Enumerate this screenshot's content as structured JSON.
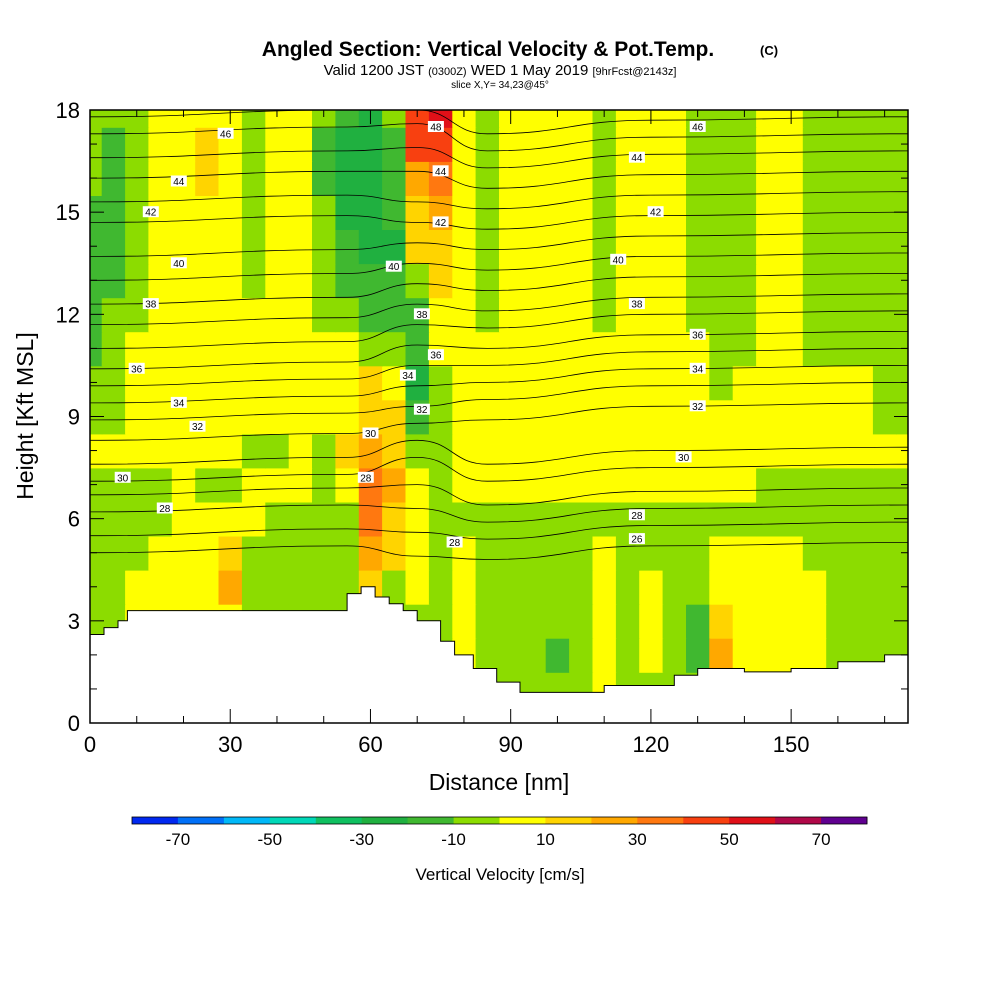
{
  "chart_data": {
    "type": "heatmap",
    "title": "Angled Section: Vertical Velocity & Pot.Temp.",
    "title_unit": "(C)",
    "subtitle": {
      "valid": "Valid 1200 JST",
      "zulu": "(0300Z)",
      "date": "WED 1 May 2019",
      "forecast": "[9hrFcst@2143z]"
    },
    "slice_label": "slice X,Y= 34,23@45°",
    "xlabel": "Distance [nm]",
    "ylabel": "Height [Kft MSL]",
    "xlim": [
      0,
      175
    ],
    "ylim": [
      0,
      18
    ],
    "x_ticks": [
      0,
      30,
      60,
      90,
      120,
      150
    ],
    "x_tick_labels": [
      "0",
      "30",
      "60",
      "90",
      "120",
      "150"
    ],
    "y_ticks": [
      0,
      3,
      6,
      9,
      12,
      15,
      18
    ],
    "y_tick_labels": [
      "0",
      "3",
      "6",
      "9",
      "12",
      "15",
      "18"
    ],
    "grid": false,
    "colorbar": {
      "label": "Vertical Velocity [cm/s]",
      "bounds": [
        -80,
        -70,
        -60,
        -50,
        -40,
        -30,
        -20,
        -10,
        0,
        10,
        20,
        30,
        40,
        50,
        60,
        70,
        80
      ],
      "colors": [
        "#0028f0",
        "#0070f8",
        "#00b8f8",
        "#00d8b8",
        "#10c060",
        "#20b040",
        "#40b830",
        "#8cdc00",
        "#ffff00",
        "#ffd400",
        "#ffa800",
        "#ff7810",
        "#f84010",
        "#e01018",
        "#b00848",
        "#600090"
      ],
      "tick_values": [
        -70,
        -50,
        -30,
        -10,
        10,
        30,
        50,
        70
      ],
      "tick_labels": [
        "-70",
        "-50",
        "-30",
        "-10",
        "10",
        "30",
        "50",
        "70"
      ]
    },
    "velocity_field": {
      "x": [
        0,
        5,
        10,
        15,
        20,
        25,
        30,
        35,
        40,
        45,
        50,
        55,
        60,
        65,
        70,
        75,
        80,
        85,
        90,
        95,
        100,
        105,
        110,
        115,
        120,
        125,
        130,
        135,
        140,
        145,
        150,
        155,
        160,
        165,
        170,
        175
      ],
      "y": [
        0,
        1,
        2,
        3,
        4,
        5,
        6,
        7,
        8,
        9,
        10,
        11,
        12,
        13,
        14,
        15,
        16,
        17,
        18
      ],
      "values_cm_s": [
        [
          -3,
          -3,
          -3,
          -3,
          -3,
          -3,
          -3,
          -3,
          -3,
          -3,
          -3,
          -3,
          -3,
          -3,
          -3,
          -3,
          -3,
          -3,
          -5,
          -8,
          -6,
          -3,
          3,
          -3,
          -3,
          -3,
          -3,
          5,
          -3,
          -3,
          3,
          -3,
          -3,
          -3,
          -3,
          -3
        ],
        [
          -3,
          -3,
          -3,
          -3,
          -3,
          -3,
          -3,
          -3,
          -3,
          -3,
          -3,
          -3,
          -3,
          -3,
          -3,
          -3,
          -3,
          -3,
          -5,
          -8,
          -6,
          -3,
          3,
          -3,
          -3,
          -3,
          -8,
          15,
          -3,
          -3,
          3,
          3,
          -3,
          -3,
          -3,
          -3
        ],
        [
          -3,
          -3,
          -3,
          -3,
          -3,
          -3,
          -3,
          -3,
          -3,
          -3,
          -3,
          -3,
          -3,
          -3,
          -3,
          -3,
          3,
          -3,
          -3,
          -5,
          -12,
          -3,
          5,
          -3,
          3,
          -3,
          -15,
          22,
          3,
          3,
          3,
          3,
          -3,
          -3,
          -3,
          -3
        ],
        [
          -3,
          -3,
          5,
          5,
          5,
          5,
          3,
          -3,
          -3,
          -3,
          -3,
          -3,
          -3,
          -3,
          -3,
          -3,
          5,
          -3,
          -3,
          -3,
          -8,
          -3,
          8,
          -3,
          5,
          -3,
          -12,
          15,
          3,
          5,
          5,
          3,
          -3,
          -3,
          -3,
          -3
        ],
        [
          -3,
          -3,
          5,
          5,
          8,
          5,
          22,
          -3,
          -3,
          -3,
          -3,
          -3,
          18,
          -3,
          5,
          -3,
          8,
          -3,
          -3,
          -3,
          -3,
          -3,
          8,
          -3,
          5,
          -3,
          -5,
          8,
          5,
          8,
          8,
          3,
          -3,
          -3,
          -3,
          -3
        ],
        [
          -3,
          -3,
          -3,
          5,
          8,
          5,
          15,
          -3,
          -3,
          -3,
          -3,
          -3,
          28,
          12,
          8,
          -3,
          3,
          -3,
          -3,
          -3,
          -3,
          -3,
          3,
          -3,
          -3,
          -3,
          -3,
          5,
          8,
          8,
          5,
          -3,
          -3,
          -3,
          -3,
          -3
        ],
        [
          -3,
          -3,
          -3,
          -3,
          5,
          3,
          3,
          5,
          -3,
          -3,
          -3,
          -3,
          35,
          15,
          3,
          -3,
          -3,
          -3,
          -3,
          -3,
          -3,
          -3,
          -3,
          -3,
          -3,
          -3,
          -3,
          -3,
          -3,
          -3,
          -3,
          -3,
          -3,
          -3,
          -3,
          -3
        ],
        [
          -3,
          -3,
          -3,
          -3,
          8,
          -3,
          -3,
          5,
          5,
          3,
          -3,
          5,
          35,
          20,
          5,
          -3,
          3,
          5,
          5,
          5,
          5,
          5,
          5,
          5,
          5,
          3,
          3,
          3,
          3,
          -3,
          -3,
          -3,
          -3,
          -3,
          -3,
          -3
        ],
        [
          3,
          3,
          3,
          3,
          3,
          3,
          3,
          -3,
          -3,
          3,
          -3,
          15,
          25,
          15,
          -8,
          -8,
          3,
          5,
          5,
          5,
          5,
          5,
          5,
          5,
          5,
          5,
          3,
          3,
          3,
          3,
          3,
          3,
          3,
          3,
          3,
          3
        ],
        [
          -3,
          -3,
          5,
          5,
          5,
          5,
          5,
          3,
          5,
          5,
          3,
          5,
          15,
          10,
          -12,
          -3,
          3,
          5,
          5,
          5,
          5,
          5,
          5,
          5,
          5,
          5,
          5,
          5,
          5,
          5,
          5,
          5,
          5,
          5,
          -3,
          -3
        ],
        [
          -5,
          -3,
          5,
          5,
          5,
          5,
          5,
          3,
          5,
          5,
          5,
          5,
          10,
          3,
          -22,
          -3,
          5,
          5,
          5,
          5,
          5,
          5,
          5,
          5,
          5,
          5,
          5,
          -3,
          5,
          5,
          5,
          5,
          5,
          5,
          -3,
          -3
        ],
        [
          -12,
          -3,
          5,
          5,
          5,
          5,
          5,
          5,
          5,
          5,
          5,
          5,
          -3,
          -5,
          -18,
          3,
          5,
          5,
          5,
          5,
          5,
          5,
          5,
          5,
          5,
          5,
          5,
          -3,
          -3,
          5,
          5,
          -3,
          -3,
          -3,
          -3,
          -3
        ],
        [
          -15,
          -8,
          -3,
          5,
          5,
          5,
          5,
          5,
          5,
          5,
          -3,
          -5,
          -12,
          -15,
          -12,
          5,
          5,
          -3,
          5,
          5,
          5,
          5,
          -3,
          5,
          5,
          5,
          -3,
          -3,
          -3,
          5,
          5,
          -3,
          -3,
          -3,
          -3,
          -3
        ],
        [
          -15,
          -12,
          -3,
          5,
          5,
          5,
          5,
          -3,
          5,
          5,
          -3,
          -12,
          -20,
          -15,
          -3,
          12,
          5,
          -3,
          5,
          5,
          5,
          5,
          -3,
          5,
          5,
          5,
          -3,
          -3,
          -3,
          5,
          5,
          -3,
          -3,
          -3,
          -3,
          -3
        ],
        [
          -12,
          -12,
          -3,
          5,
          5,
          5,
          5,
          -3,
          5,
          5,
          -5,
          -15,
          -22,
          -22,
          10,
          18,
          5,
          -3,
          5,
          5,
          5,
          5,
          -3,
          5,
          5,
          5,
          -3,
          -3,
          -3,
          5,
          5,
          -3,
          -3,
          -3,
          -3,
          -3
        ],
        [
          -12,
          -15,
          -3,
          5,
          5,
          5,
          5,
          -3,
          5,
          5,
          -8,
          -22,
          -25,
          -15,
          18,
          25,
          5,
          -3,
          5,
          5,
          5,
          5,
          -3,
          5,
          5,
          5,
          -3,
          -3,
          -3,
          5,
          5,
          -3,
          -3,
          -3,
          -3,
          -3
        ],
        [
          -8,
          -15,
          -3,
          5,
          5,
          12,
          5,
          -3,
          5,
          5,
          -12,
          -28,
          -30,
          -15,
          25,
          35,
          5,
          -3,
          5,
          5,
          5,
          5,
          -3,
          5,
          5,
          5,
          -3,
          -3,
          -3,
          5,
          5,
          -3,
          -3,
          -3,
          -3,
          -3
        ],
        [
          -5,
          -12,
          -3,
          5,
          5,
          15,
          5,
          -3,
          5,
          5,
          -15,
          -25,
          -30,
          -15,
          40,
          45,
          3,
          -3,
          5,
          5,
          5,
          5,
          -3,
          5,
          5,
          5,
          -3,
          -3,
          -3,
          5,
          5,
          -3,
          -3,
          -3,
          -3,
          -3
        ],
        [
          -3,
          -8,
          -3,
          5,
          5,
          5,
          5,
          -3,
          5,
          5,
          -10,
          -20,
          -25,
          -10,
          40,
          55,
          3,
          -3,
          5,
          5,
          5,
          5,
          -3,
          5,
          5,
          5,
          -3,
          -3,
          -3,
          5,
          5,
          -3,
          -3,
          -3,
          -3,
          -3
        ]
      ]
    },
    "terrain": {
      "x": [
        0,
        3,
        3,
        6,
        6,
        8,
        8,
        55,
        55,
        58,
        58,
        61,
        61,
        64,
        64,
        67,
        67,
        70,
        70,
        75,
        75,
        78,
        78,
        82,
        82,
        87,
        87,
        92,
        92,
        110,
        110,
        125,
        125,
        130,
        130,
        140,
        140,
        150,
        150,
        160,
        160,
        170,
        170,
        175
      ],
      "y": [
        2.6,
        2.6,
        2.8,
        2.8,
        3.0,
        3.0,
        3.3,
        3.3,
        3.8,
        3.8,
        4.0,
        4.0,
        3.7,
        3.7,
        3.5,
        3.5,
        3.3,
        3.3,
        3.0,
        3.0,
        2.4,
        2.4,
        2.0,
        2.0,
        1.6,
        1.6,
        1.2,
        1.2,
        0.9,
        0.9,
        1.1,
        1.1,
        1.4,
        1.4,
        1.6,
        1.6,
        1.5,
        1.5,
        1.6,
        1.6,
        1.8,
        1.8,
        2.0,
        2.0
      ]
    },
    "theta_contours": {
      "levels": [
        26,
        27,
        28,
        29,
        30,
        31,
        32,
        33,
        34,
        35,
        36,
        37,
        38,
        39,
        40,
        41,
        42,
        43,
        44,
        45,
        46,
        47
      ],
      "west_heights_kft": [
        5.0,
        5.5,
        6.2,
        6.7,
        7.1,
        7.6,
        8.3,
        8.9,
        9.4,
        9.9,
        10.4,
        11.0,
        11.7,
        12.3,
        13.0,
        13.7,
        14.7,
        15.3,
        16.0,
        16.6,
        17.3,
        17.8
      ],
      "central_heights_kft": [
        4.9,
        5.6,
        6.3,
        7.0,
        7.8,
        8.3,
        8.8,
        9.3,
        9.9,
        10.5,
        11.1,
        11.7,
        12.3,
        12.9,
        13.5,
        14.1,
        14.7,
        15.3,
        16.2,
        16.9,
        17.6,
        18.0
      ],
      "east_heights_kft": [
        5.2,
        5.8,
        6.3,
        6.8,
        7.5,
        8.0,
        9.3,
        9.9,
        10.4,
        10.9,
        11.4,
        12.0,
        12.5,
        13.1,
        13.7,
        14.3,
        14.9,
        15.5,
        16.1,
        16.7,
        17.2,
        17.7
      ],
      "labels": [
        {
          "text": "46",
          "x": 29,
          "y": 17.3
        },
        {
          "text": "44",
          "x": 19,
          "y": 15.9
        },
        {
          "text": "42",
          "x": 13,
          "y": 15.0
        },
        {
          "text": "40",
          "x": 19,
          "y": 13.5
        },
        {
          "text": "38",
          "x": 13,
          "y": 12.3
        },
        {
          "text": "36",
          "x": 10,
          "y": 10.4
        },
        {
          "text": "34",
          "x": 19,
          "y": 9.4
        },
        {
          "text": "32",
          "x": 23,
          "y": 8.7
        },
        {
          "text": "30",
          "x": 7,
          "y": 7.2
        },
        {
          "text": "28",
          "x": 16,
          "y": 6.3
        },
        {
          "text": "30",
          "x": 60,
          "y": 8.5
        },
        {
          "text": "28",
          "x": 59,
          "y": 7.2
        },
        {
          "text": "40",
          "x": 65,
          "y": 13.4
        },
        {
          "text": "38",
          "x": 71,
          "y": 12.0
        },
        {
          "text": "36",
          "x": 74,
          "y": 10.8
        },
        {
          "text": "34",
          "x": 68,
          "y": 10.2
        },
        {
          "text": "32",
          "x": 71,
          "y": 9.2
        },
        {
          "text": "28",
          "x": 78,
          "y": 5.3
        },
        {
          "text": "48",
          "x": 74,
          "y": 17.5
        },
        {
          "text": "44",
          "x": 75,
          "y": 16.2
        },
        {
          "text": "42",
          "x": 75,
          "y": 14.7
        },
        {
          "text": "46",
          "x": 130,
          "y": 17.5
        },
        {
          "text": "44",
          "x": 117,
          "y": 16.6
        },
        {
          "text": "42",
          "x": 121,
          "y": 15.0
        },
        {
          "text": "40",
          "x": 113,
          "y": 13.6
        },
        {
          "text": "38",
          "x": 117,
          "y": 12.3
        },
        {
          "text": "36",
          "x": 130,
          "y": 11.4
        },
        {
          "text": "34",
          "x": 130,
          "y": 10.4
        },
        {
          "text": "32",
          "x": 130,
          "y": 9.3
        },
        {
          "text": "30",
          "x": 127,
          "y": 7.8
        },
        {
          "text": "28",
          "x": 117,
          "y": 6.1
        },
        {
          "text": "26",
          "x": 117,
          "y": 5.4
        }
      ]
    }
  }
}
